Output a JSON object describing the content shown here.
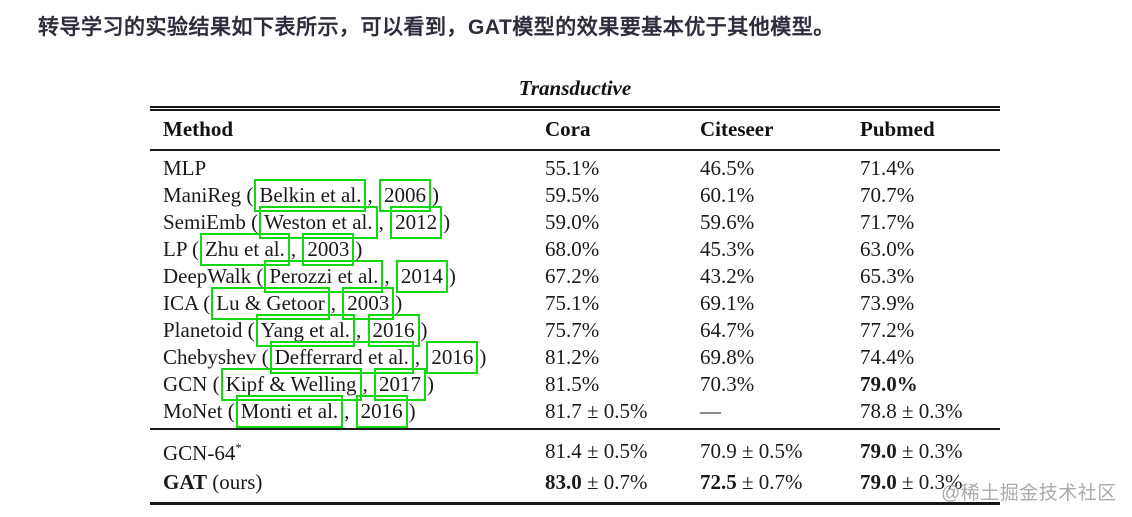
{
  "page": {
    "title": "转导学习的实验结果如下表所示，可以看到，GAT模型的效果要基本优于其他模型。",
    "watermark": "@稀土掘金技术社区"
  },
  "colors": {
    "title_text": "#2d2d3c",
    "annotation_box_green": "#12d812",
    "table_text": "#1a1a1a",
    "watermark_gray": "#9b9ba1"
  },
  "table": {
    "title": "Transductive",
    "columns": [
      "Method",
      "Cora",
      "Citeseer",
      "Pubmed"
    ],
    "rows": [
      {
        "name": "MLP",
        "author": null,
        "year": null,
        "cells": [
          [
            {
              "text": "55.1%"
            }
          ],
          [
            {
              "text": "46.5%"
            }
          ],
          [
            {
              "text": "71.4%"
            }
          ]
        ]
      },
      {
        "name": "ManiReg",
        "author": "Belkin et al.",
        "year": "2006",
        "cells": [
          [
            {
              "text": "59.5%"
            }
          ],
          [
            {
              "text": "60.1%"
            }
          ],
          [
            {
              "text": "70.7%"
            }
          ]
        ]
      },
      {
        "name": "SemiEmb",
        "author": "Weston et al.",
        "year": "2012",
        "cells": [
          [
            {
              "text": "59.0%"
            }
          ],
          [
            {
              "text": "59.6%"
            }
          ],
          [
            {
              "text": "71.7%"
            }
          ]
        ]
      },
      {
        "name": "LP",
        "author": "Zhu et al.",
        "year": "2003",
        "cells": [
          [
            {
              "text": "68.0%"
            }
          ],
          [
            {
              "text": "45.3%"
            }
          ],
          [
            {
              "text": "63.0%"
            }
          ]
        ]
      },
      {
        "name": "DeepWalk",
        "author": "Perozzi et al.",
        "year": "2014",
        "cells": [
          [
            {
              "text": "67.2%"
            }
          ],
          [
            {
              "text": "43.2%"
            }
          ],
          [
            {
              "text": "65.3%"
            }
          ]
        ]
      },
      {
        "name": "ICA",
        "author": "Lu & Getoor",
        "year": "2003",
        "cells": [
          [
            {
              "text": "75.1%"
            }
          ],
          [
            {
              "text": "69.1%"
            }
          ],
          [
            {
              "text": "73.9%"
            }
          ]
        ]
      },
      {
        "name": "Planetoid",
        "author": "Yang et al.",
        "year": "2016",
        "cells": [
          [
            {
              "text": "75.7%"
            }
          ],
          [
            {
              "text": "64.7%"
            }
          ],
          [
            {
              "text": "77.2%"
            }
          ]
        ]
      },
      {
        "name": "Chebyshev",
        "author": "Defferrard et al.",
        "year": "2016",
        "cells": [
          [
            {
              "text": "81.2%"
            }
          ],
          [
            {
              "text": "69.8%"
            }
          ],
          [
            {
              "text": "74.4%"
            }
          ]
        ]
      },
      {
        "name": "GCN",
        "author": "Kipf & Welling",
        "year": "2017",
        "cells": [
          [
            {
              "text": "81.5%"
            }
          ],
          [
            {
              "text": "70.3%"
            }
          ],
          [
            {
              "text": "79.0%",
              "bold": true
            }
          ]
        ]
      },
      {
        "name": "MoNet",
        "author": "Monti et al.",
        "year": "2016",
        "cells": [
          [
            {
              "text": "81.7 ± 0.5%"
            }
          ],
          [
            {
              "text": "—"
            }
          ],
          [
            {
              "text": "78.8 ± 0.3%"
            }
          ]
        ]
      }
    ],
    "footer_rows": [
      {
        "method": [
          {
            "text": "GCN-64"
          },
          {
            "text": "*",
            "sup": true
          }
        ],
        "cells": [
          [
            {
              "text": "81.4 ± 0.5%"
            }
          ],
          [
            {
              "text": "70.9 ± 0.5%"
            }
          ],
          [
            {
              "text": "79.0",
              "bold": true
            },
            {
              "text": " ± 0.3%"
            }
          ]
        ]
      },
      {
        "method": [
          {
            "text": "GAT",
            "bold": true
          },
          {
            "text": " (ours)"
          }
        ],
        "cells": [
          [
            {
              "text": "83.0",
              "bold": true
            },
            {
              "text": " ± 0.7%"
            }
          ],
          [
            {
              "text": "72.5",
              "bold": true
            },
            {
              "text": " ± 0.7%"
            }
          ],
          [
            {
              "text": "79.0",
              "bold": true
            },
            {
              "text": " ± 0.3%"
            }
          ]
        ]
      }
    ]
  }
}
